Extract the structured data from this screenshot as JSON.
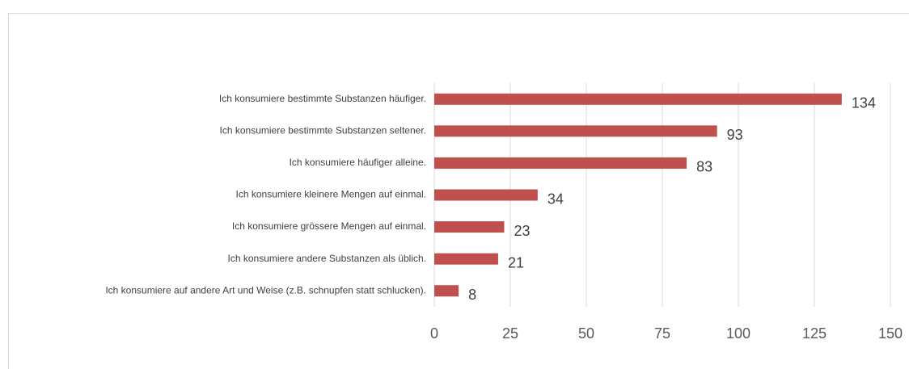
{
  "chart_data": {
    "type": "bar",
    "orientation": "horizontal",
    "categories": [
      "Ich konsumiere bestimmte Substanzen häufiger.",
      "Ich konsumiere bestimmte Substanzen seltener.",
      "Ich konsumiere häufiger alleine.",
      "Ich konsumiere kleinere Mengen auf einmal.",
      "Ich konsumiere grössere Mengen auf einmal.",
      "Ich konsumiere andere Substanzen als üblich.",
      "Ich konsumiere auf andere Art und Weise (z.B. schnupfen statt schlucken)."
    ],
    "values": [
      134,
      93,
      83,
      34,
      23,
      21,
      8
    ],
    "color": "#c0504d",
    "xlim": [
      0,
      150
    ],
    "xticks": [
      0,
      25,
      50,
      75,
      100,
      125,
      150
    ],
    "grid": true
  }
}
